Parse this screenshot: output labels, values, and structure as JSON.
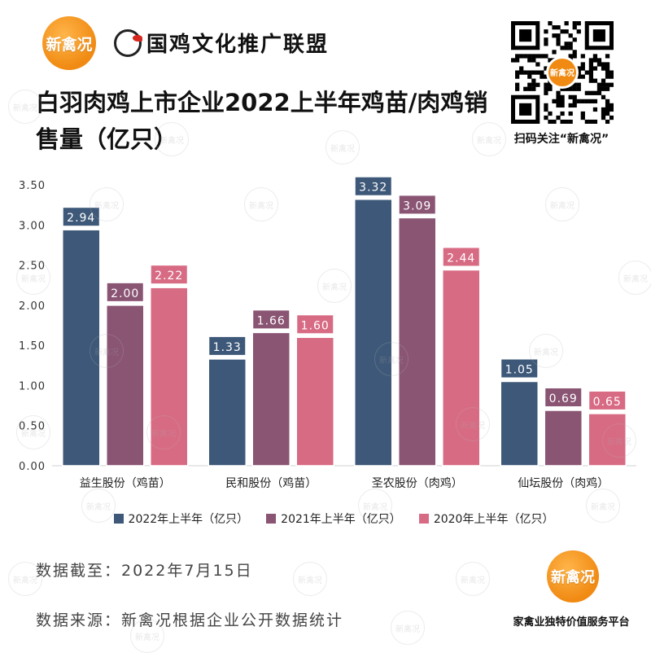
{
  "brand": {
    "logo_text": "新禽况",
    "alliance_name": "国鸡文化推广联盟",
    "qr_caption": "扫码关注“新禽况”",
    "qr_center_text": "新禽况",
    "platform_tagline": "家禽业独特价值服务平台"
  },
  "footer": {
    "as_of": "数据截至：2022年7月15日",
    "source": "数据来源：新禽况根据企业公开数据统计"
  },
  "colors": {
    "series_2022": "#3d5878",
    "series_2021": "#8a5473",
    "series_2020": "#d86b84",
    "logo_orange": "#f08a12"
  },
  "chart_data": {
    "type": "bar",
    "title": "白羽肉鸡上市企业2022上半年鸡苗/肉鸡销售量（亿只）",
    "xlabel": "",
    "ylabel": "",
    "categories": [
      "益生股份（鸡苗）",
      "民和股份（鸡苗）",
      "圣农股份（肉鸡）",
      "仙坛股份（肉鸡）"
    ],
    "series": [
      {
        "name": "2022年上半年（亿只）",
        "values": [
          2.94,
          1.33,
          3.32,
          1.05
        ]
      },
      {
        "name": "2021年上半年（亿只）",
        "values": [
          2.0,
          1.66,
          3.09,
          0.69
        ]
      },
      {
        "name": "2020年上半年（亿只）",
        "values": [
          2.22,
          1.6,
          2.44,
          0.65
        ]
      }
    ],
    "value_labels": [
      [
        "2.94",
        "1.33",
        "3.32",
        "1.05"
      ],
      [
        "2.00",
        "1.66",
        "3.09",
        "0.69"
      ],
      [
        "2.22",
        "1.60",
        "2.44",
        "0.65"
      ]
    ],
    "yticks": [
      "0.00",
      "0.50",
      "1.00",
      "1.50",
      "2.00",
      "2.50",
      "3.00",
      "3.50"
    ],
    "ylim": [
      0,
      3.5
    ],
    "grid": false,
    "legend_position": "bottom"
  }
}
